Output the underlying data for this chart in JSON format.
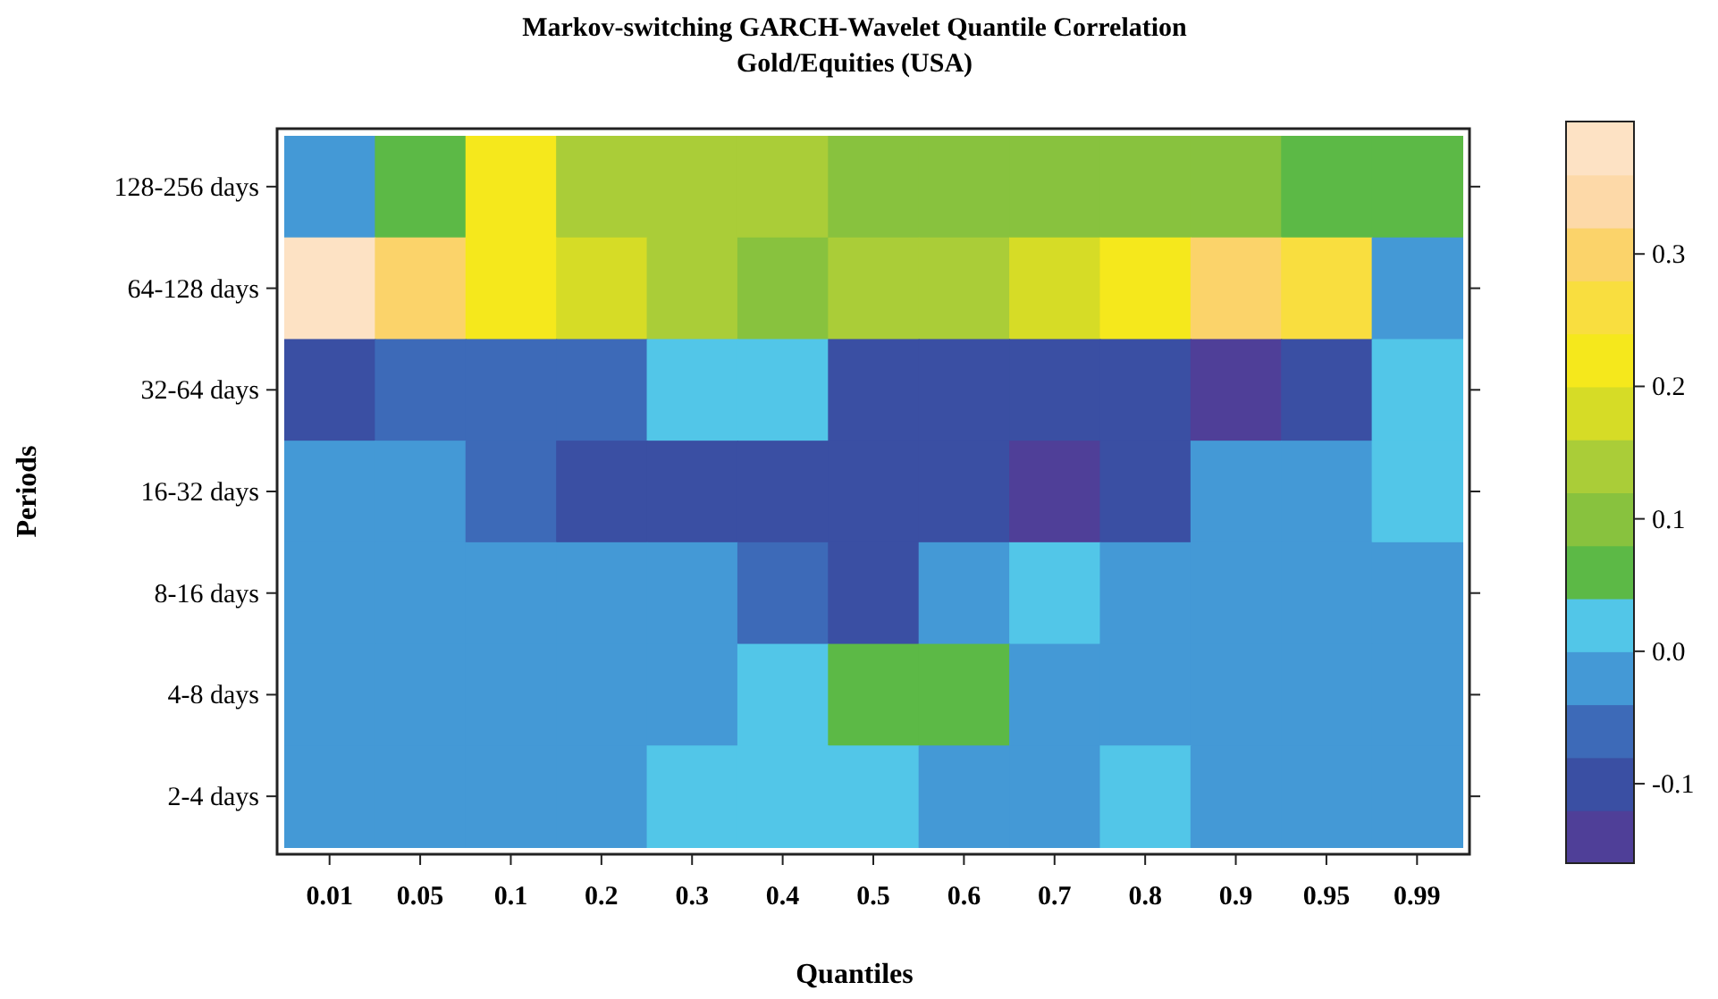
{
  "chart_data": {
    "type": "heatmap",
    "title": "Markov-switching GARCH-Wavelet Quantile Correlation",
    "subtitle": "Gold/Equities (USA)",
    "xlabel": "Quantiles",
    "ylabel": "Periods",
    "categories": [
      "0.01",
      "0.05",
      "0.1",
      "0.2",
      "0.3",
      "0.4",
      "0.5",
      "0.6",
      "0.7",
      "0.8",
      "0.9",
      "0.95",
      "0.99"
    ],
    "y_categories": [
      "128-256 days",
      "64-128 days",
      "32-64 days",
      "16-32 days",
      "8-16 days",
      "4-8 days",
      "2-4 days"
    ],
    "cells": [
      [
        -0.02,
        0.06,
        0.22,
        0.14,
        0.14,
        0.14,
        0.1,
        0.1,
        0.1,
        0.1,
        0.1,
        0.06,
        0.06
      ],
      [
        0.38,
        0.3,
        0.22,
        0.18,
        0.14,
        0.1,
        0.14,
        0.14,
        0.18,
        0.22,
        0.3,
        0.26,
        -0.02
      ],
      [
        -0.1,
        -0.06,
        -0.06,
        -0.06,
        0.02,
        0.02,
        -0.1,
        -0.1,
        -0.1,
        -0.1,
        -0.14,
        -0.1,
        0.02
      ],
      [
        -0.02,
        -0.02,
        -0.06,
        -0.1,
        -0.1,
        -0.1,
        -0.1,
        -0.1,
        -0.14,
        -0.1,
        -0.02,
        -0.02,
        0.02
      ],
      [
        -0.02,
        -0.02,
        -0.02,
        -0.02,
        -0.02,
        -0.06,
        -0.1,
        -0.02,
        0.02,
        -0.02,
        -0.02,
        -0.02,
        -0.02
      ],
      [
        -0.02,
        -0.02,
        -0.02,
        -0.02,
        -0.02,
        0.02,
        0.06,
        0.06,
        -0.02,
        -0.02,
        -0.02,
        -0.02,
        -0.02
      ],
      [
        -0.02,
        -0.02,
        -0.02,
        -0.02,
        0.02,
        0.02,
        0.02,
        -0.02,
        -0.02,
        0.02,
        -0.02,
        -0.02,
        -0.02
      ]
    ],
    "clim": [
      -0.16,
      0.4
    ],
    "cticks": [
      {
        "value": -0.1,
        "label": "-0.1"
      },
      {
        "value": 0,
        "label": "0.0"
      },
      0.1,
      0.2,
      0.3
    ]
  }
}
